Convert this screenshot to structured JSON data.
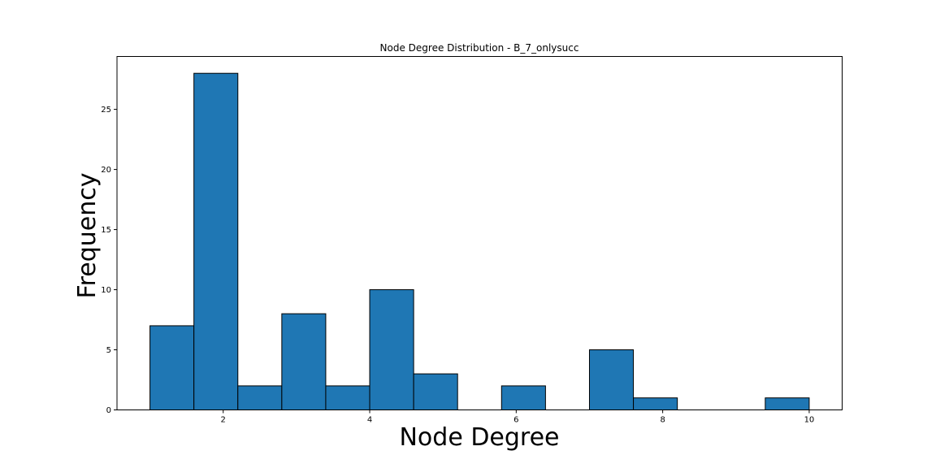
{
  "chart_data": {
    "type": "bar",
    "title": "Node Degree Distribution - B_7_onlysucc",
    "xlabel": "Node Degree",
    "ylabel": "Frequency",
    "xlim": [
      0.55,
      10.45
    ],
    "ylim": [
      0,
      29.4
    ],
    "x_ticks": [
      2,
      4,
      6,
      8,
      10
    ],
    "y_ticks": [
      0,
      5,
      10,
      15,
      20,
      25
    ],
    "bin_edges": [
      1.0,
      1.6,
      2.2,
      2.8,
      3.4,
      4.0,
      4.6,
      5.2,
      5.8,
      6.4,
      7.0,
      7.6,
      8.2,
      8.8,
      9.4,
      10.0
    ],
    "values": [
      7,
      28,
      2,
      8,
      2,
      10,
      3,
      0,
      2,
      0,
      5,
      1,
      0,
      0,
      1
    ],
    "bar_color": "#1f77b4",
    "edge_color": "#000000",
    "grid": false,
    "legend": "none"
  }
}
